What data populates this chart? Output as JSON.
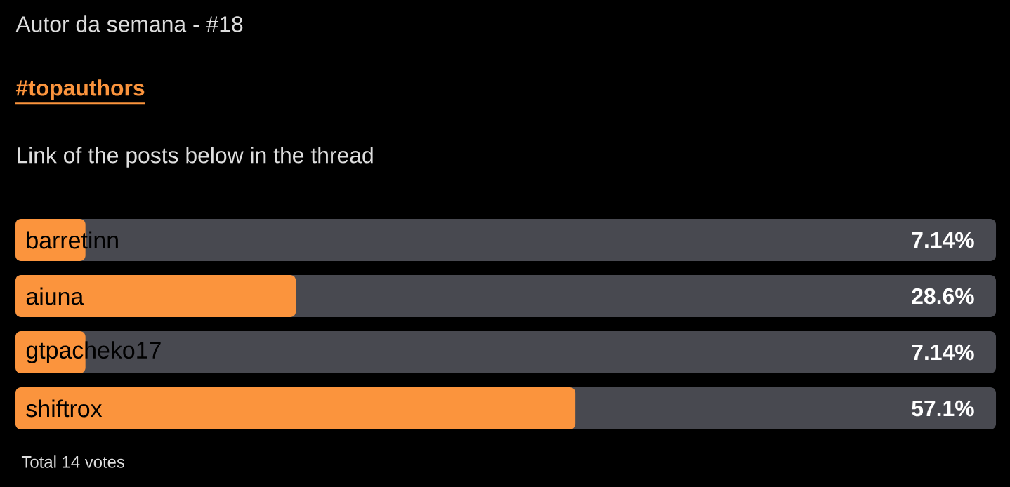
{
  "chart_data": {
    "type": "bar",
    "orientation": "horizontal",
    "title": "Autor da semana - #18",
    "subtitle": "#topauthors",
    "annotations": [
      "Link of the posts below in the thread",
      "Total 14 votes"
    ],
    "categories": [
      "barretinn",
      "aiuna",
      "gtpacheko17",
      "shiftrox"
    ],
    "values": [
      7.14,
      28.6,
      7.14,
      57.1
    ],
    "value_labels": [
      "7.14%",
      "28.6%",
      "7.14%",
      "57.1%"
    ],
    "color": "#fb943d",
    "xlim": [
      0,
      100
    ]
  }
}
